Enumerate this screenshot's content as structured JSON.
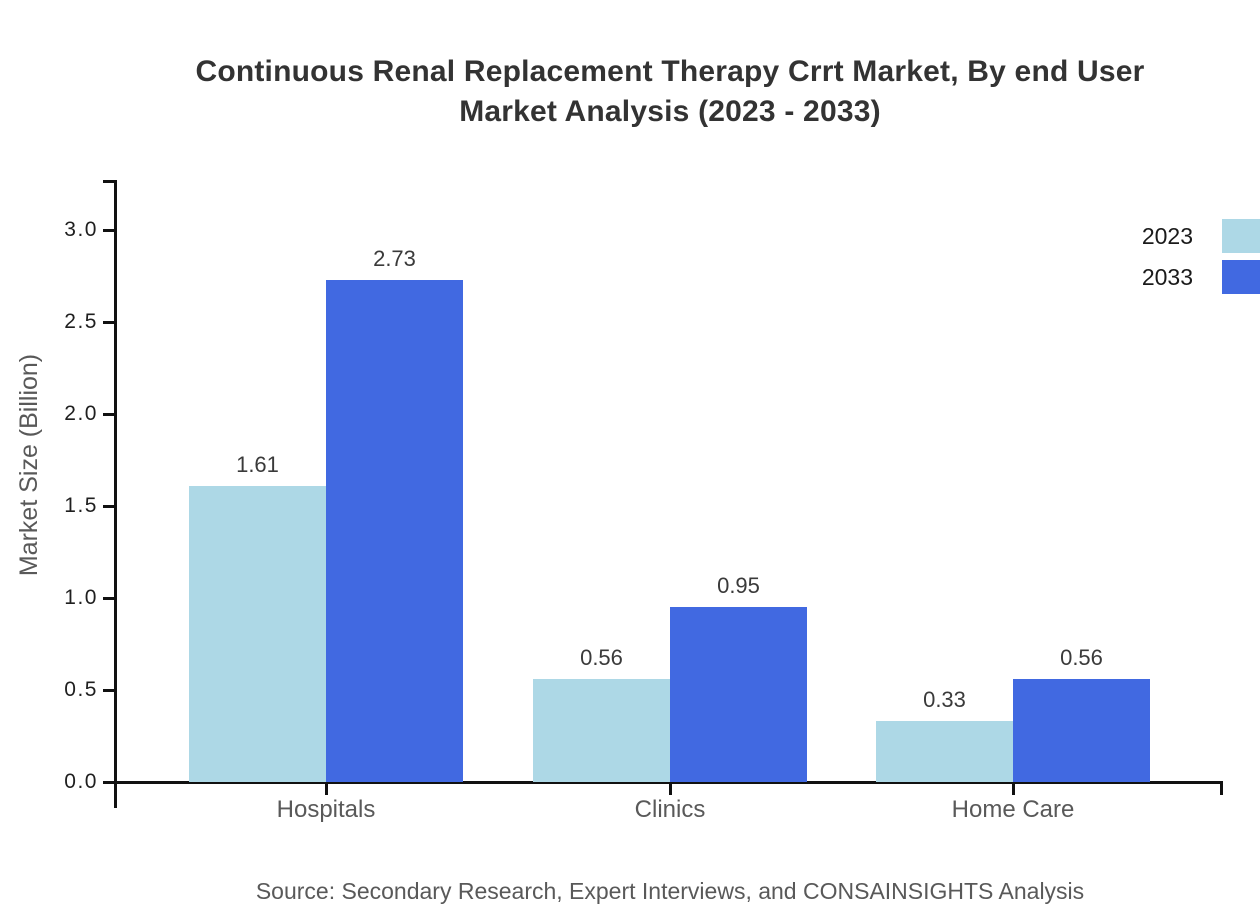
{
  "chart_data": {
    "type": "bar",
    "title": "Continuous Renal Replacement Therapy Crrt Market, By end User Market Analysis (2023 - 2033)",
    "categories": [
      "Hospitals",
      "Clinics",
      "Home Care"
    ],
    "series": [
      {
        "name": "2023",
        "color": "#ADD8E6",
        "values": [
          1.61,
          0.56,
          0.33
        ]
      },
      {
        "name": "2033",
        "color": "#4169E1",
        "values": [
          2.73,
          0.95,
          0.56
        ]
      }
    ],
    "xlabel": "",
    "ylabel": "Market Size (Billion)",
    "ylim": [
      0,
      3.27
    ],
    "y_ticks": [
      0.0,
      0.5,
      1.0,
      1.5,
      2.0,
      2.5,
      3.0
    ],
    "grid": false,
    "legend_position": "top-right",
    "value_labels_shown": true,
    "axis_color": "#111111",
    "text_color_dark": "#333333",
    "text_color_gray": "#595959",
    "source": "Source: Secondary Research, Expert Interviews, and CONSAINSIGHTS Analysis"
  }
}
